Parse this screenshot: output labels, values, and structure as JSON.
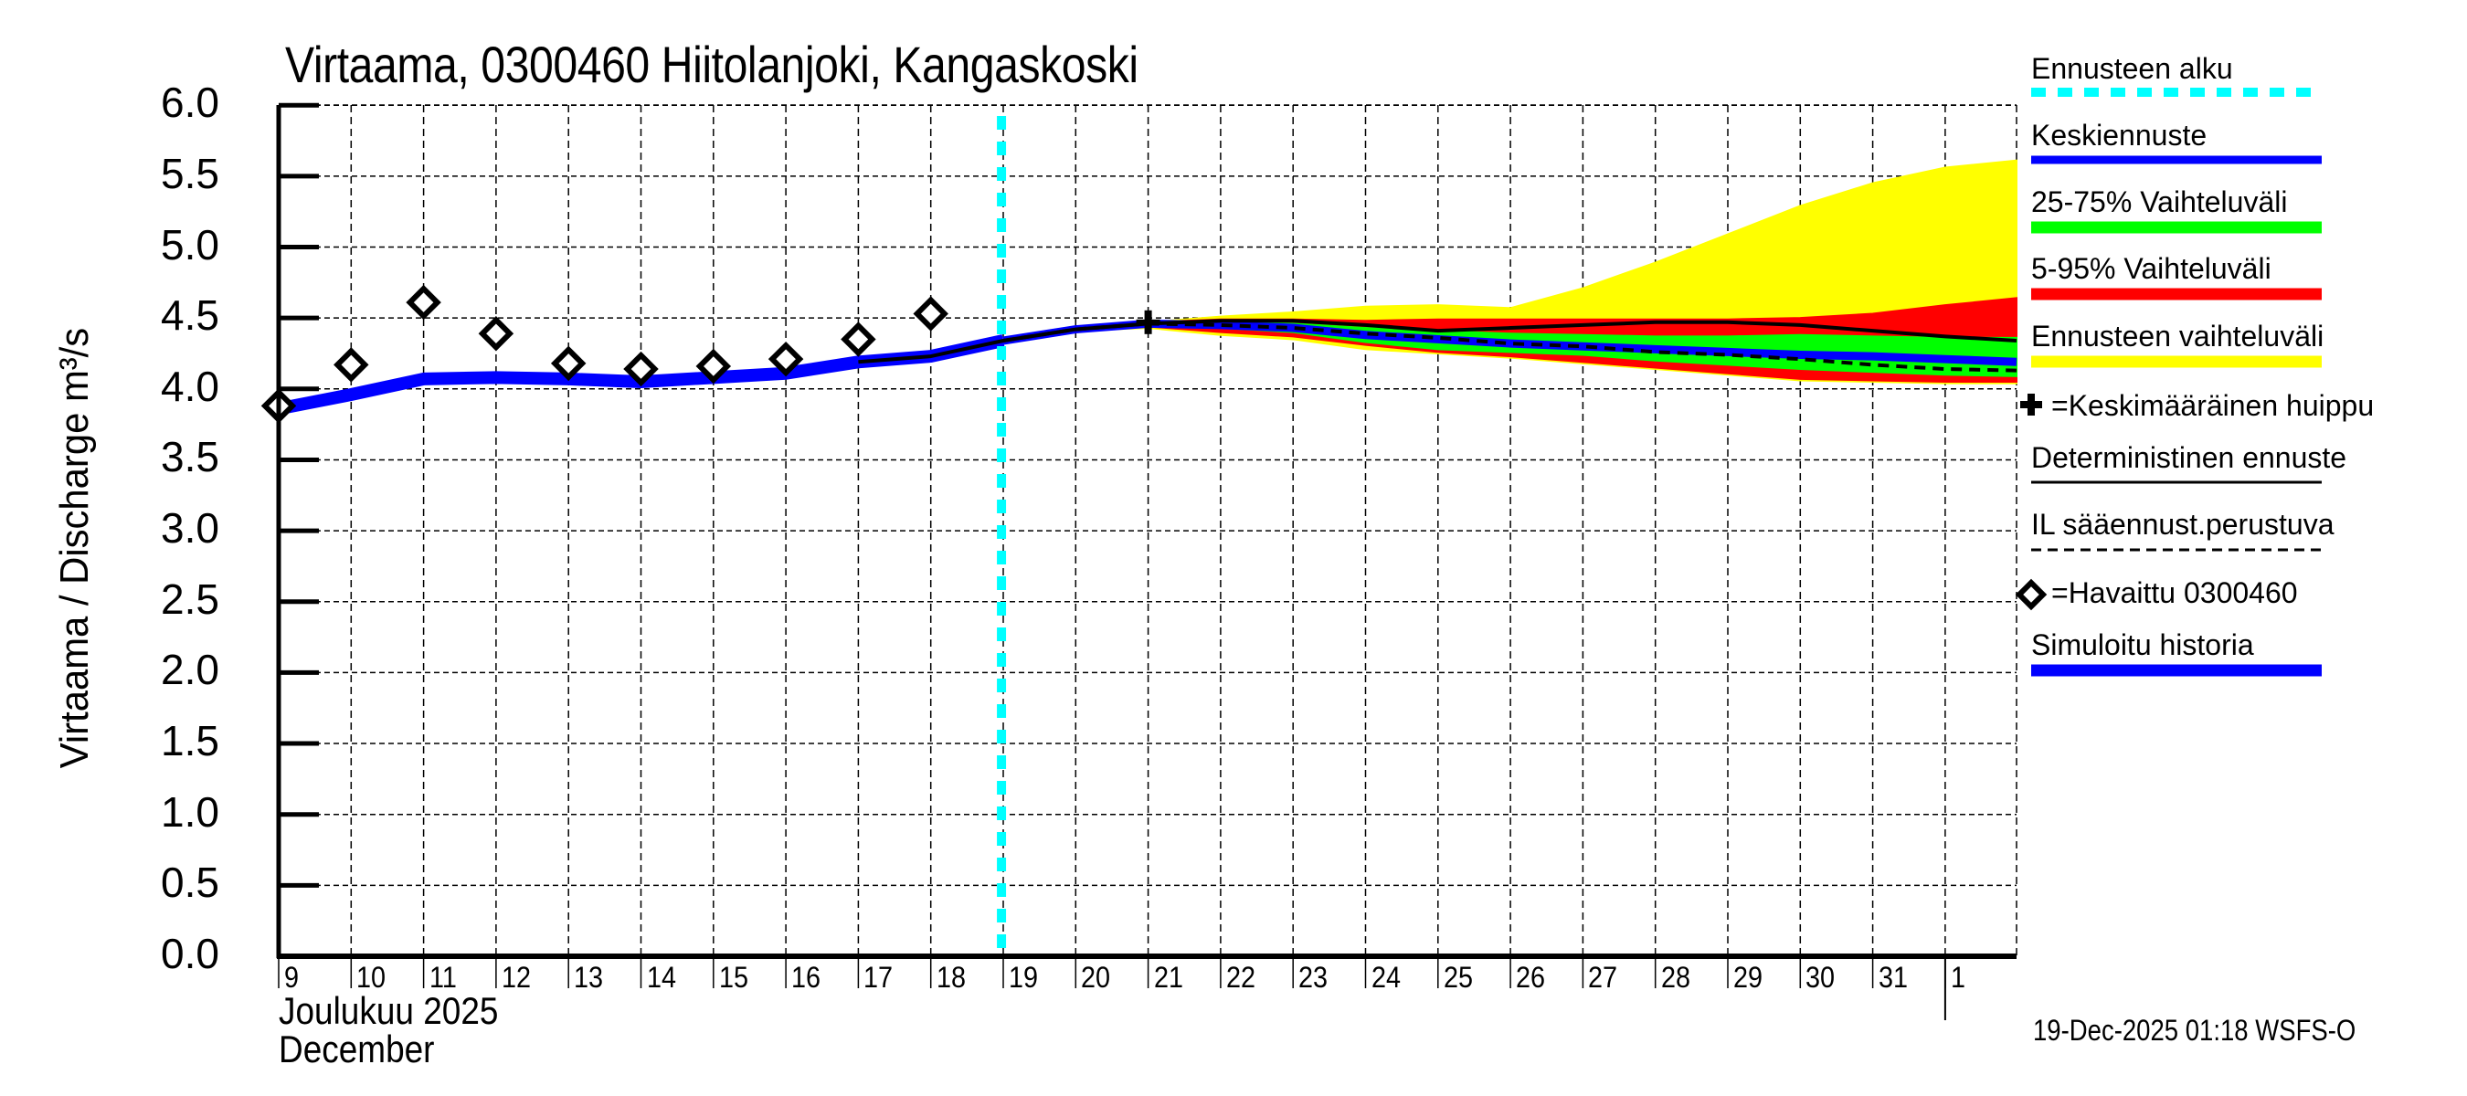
{
  "title": "Virtaama, 0300460 Hiitolanjoki, Kangaskoski",
  "ylabel": "Virtaama / Discharge   m³/s",
  "month_label_fi": "Joulukuu  2025",
  "month_label_en": "December",
  "timestamp": "19-Dec-2025 01:18 WSFS-O",
  "colors": {
    "forecast_start": "#00ffff",
    "mean_forecast": "#0000ff",
    "band_25_75": "#00ff00",
    "band_5_95": "#ff0000",
    "band_full": "#ffff00",
    "deterministic": "#000000",
    "simulated": "#0000ff",
    "observed": "#000000"
  },
  "legend": {
    "items": [
      {
        "label": "Ennusteen alku",
        "type": "line",
        "style": "cyan-dashed"
      },
      {
        "label": "Keskiennuste",
        "type": "line",
        "style": "blue"
      },
      {
        "label": "25-75% Vaihteluväli",
        "type": "line",
        "style": "green"
      },
      {
        "label": "5-95% Vaihteluväli",
        "type": "line",
        "style": "red"
      },
      {
        "label": "Ennusteen vaihteluväli",
        "type": "line",
        "style": "yellow"
      },
      {
        "label": "=Keskimääräinen huippu",
        "type": "marker",
        "style": "plus"
      },
      {
        "label": "Deterministinen ennuste",
        "type": "line",
        "style": "black"
      },
      {
        "label": "IL sääennust.perustuva",
        "type": "line",
        "style": "black-dashed"
      },
      {
        "label": "=Havaittu 0300460",
        "type": "marker",
        "style": "diamond"
      },
      {
        "label": "Simuloitu historia",
        "type": "line",
        "style": "blue-thick"
      }
    ]
  },
  "chart_data": {
    "type": "line",
    "title": "Virtaama, 0300460 Hiitolanjoki, Kangaskoski",
    "xlabel": "Joulukuu 2025 / December",
    "ylabel": "Virtaama / Discharge m³/s",
    "ylim": [
      0.0,
      6.0
    ],
    "yticks": [
      "0.0",
      "0.5",
      "1.0",
      "1.5",
      "2.0",
      "2.5",
      "3.0",
      "3.5",
      "4.0",
      "4.5",
      "5.0",
      "5.5",
      "6.0"
    ],
    "xticks": [
      "9",
      "10",
      "11",
      "12",
      "13",
      "14",
      "15",
      "16",
      "17",
      "18",
      "19",
      "20",
      "21",
      "22",
      "23",
      "24",
      "25",
      "26",
      "27",
      "28",
      "29",
      "30",
      "31",
      "1"
    ],
    "grid": true,
    "legend_position": "right",
    "forecast_start_day": 18.9,
    "observed": {
      "name": "Havaittu 0300460",
      "x": [
        9,
        10,
        11,
        12,
        13,
        14,
        15,
        16,
        17,
        18
      ],
      "values": [
        3.88,
        4.17,
        4.61,
        4.39,
        4.18,
        4.14,
        4.16,
        4.21,
        4.35,
        4.53
      ]
    },
    "simulated_history": {
      "name": "Simuloitu historia",
      "x": [
        9,
        10,
        11,
        12,
        13,
        14,
        15,
        16,
        17,
        18,
        19
      ],
      "values": [
        3.86,
        3.96,
        4.07,
        4.08,
        4.07,
        4.05,
        4.08,
        4.11,
        4.19,
        4.23,
        4.34
      ]
    },
    "forecast_x": [
      19,
      20,
      21,
      22,
      23,
      24,
      25,
      26,
      27,
      28,
      29,
      30,
      31,
      32,
      33
    ],
    "series": [
      {
        "name": "Ennusteen vaihteluväli max",
        "values": [
          4.34,
          4.42,
          4.47,
          4.51,
          4.54,
          4.58,
          4.59,
          4.57,
          4.71,
          4.89,
          5.09,
          5.29,
          5.45,
          5.56,
          5.61
        ]
      },
      {
        "name": "5-95% upper",
        "values": [
          4.34,
          4.42,
          4.47,
          4.49,
          4.49,
          4.48,
          4.49,
          4.49,
          4.49,
          4.49,
          4.49,
          4.5,
          4.53,
          4.59,
          4.64
        ]
      },
      {
        "name": "25-75% upper",
        "values": [
          4.34,
          4.42,
          4.46,
          4.47,
          4.46,
          4.43,
          4.41,
          4.39,
          4.38,
          4.37,
          4.37,
          4.38,
          4.37,
          4.36,
          4.36
        ]
      },
      {
        "name": "Keskiennuste",
        "values": [
          4.34,
          4.42,
          4.46,
          4.45,
          4.43,
          4.38,
          4.35,
          4.32,
          4.3,
          4.28,
          4.26,
          4.24,
          4.23,
          4.21,
          4.19
        ]
      },
      {
        "name": "25-75% lower",
        "values": [
          4.34,
          4.42,
          4.45,
          4.43,
          4.4,
          4.33,
          4.28,
          4.26,
          4.24,
          4.2,
          4.17,
          4.14,
          4.12,
          4.1,
          4.09
        ]
      },
      {
        "name": "5-95% lower",
        "values": [
          4.34,
          4.41,
          4.44,
          4.4,
          4.37,
          4.31,
          4.26,
          4.23,
          4.19,
          4.15,
          4.11,
          4.07,
          4.06,
          4.05,
          4.05
        ]
      },
      {
        "name": "Ennusteen vaihteluväli min",
        "values": [
          4.34,
          4.41,
          4.43,
          4.38,
          4.35,
          4.28,
          4.25,
          4.22,
          4.18,
          4.14,
          4.1,
          4.06,
          4.05,
          4.04,
          4.04
        ]
      },
      {
        "name": "Deterministinen ennuste",
        "x": [
          17,
          18,
          19,
          20,
          21,
          22,
          23,
          24,
          25,
          26,
          27,
          28,
          29,
          30,
          31,
          32,
          33
        ],
        "values": [
          4.19,
          4.23,
          4.34,
          4.42,
          4.46,
          4.48,
          4.48,
          4.45,
          4.41,
          4.43,
          4.45,
          4.47,
          4.47,
          4.45,
          4.41,
          4.37,
          4.34
        ]
      },
      {
        "name": "IL sääennust.perustuva",
        "values": [
          4.34,
          4.42,
          4.46,
          4.45,
          4.43,
          4.39,
          4.36,
          4.32,
          4.3,
          4.26,
          4.24,
          4.21,
          4.17,
          4.14,
          4.13
        ]
      }
    ],
    "mean_peak": {
      "name": "Keskimääräinen huippu",
      "x": 21,
      "value": 4.47
    }
  }
}
